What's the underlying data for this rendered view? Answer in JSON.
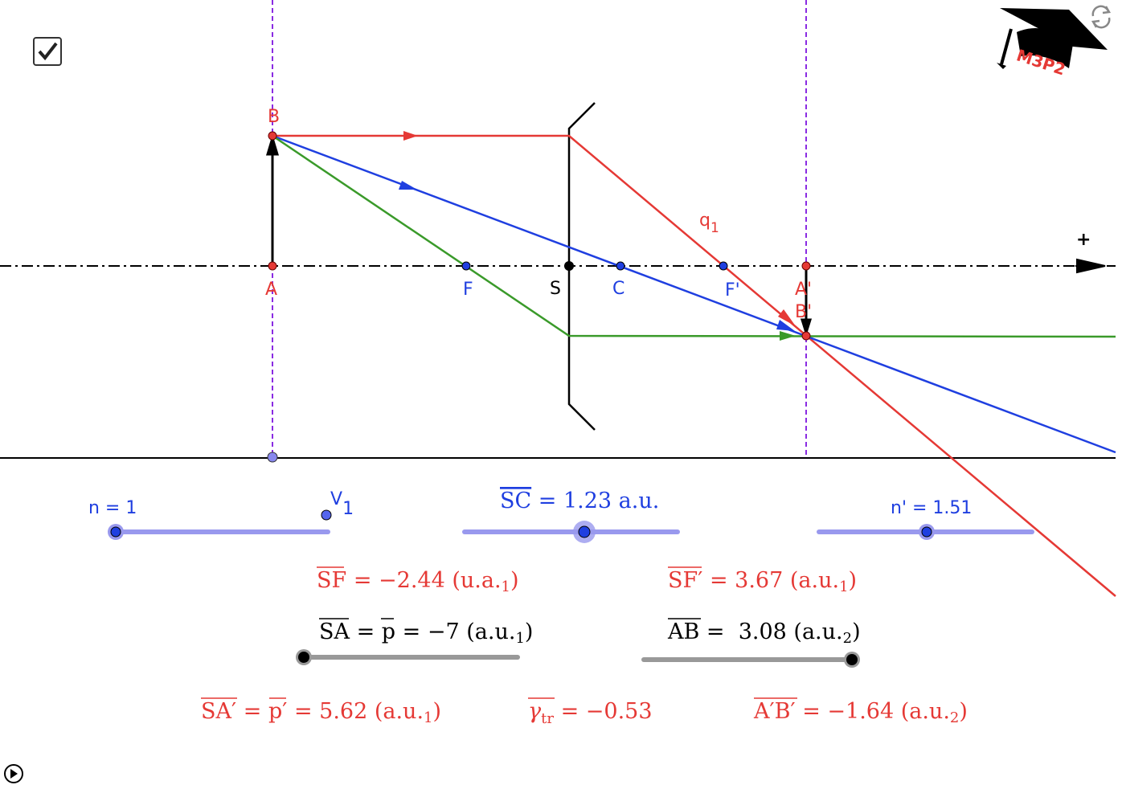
{
  "checkbox": {
    "checked": true
  },
  "logo": {
    "text": "M3P2",
    "icon": "graduation-cap-logo"
  },
  "icons": {
    "reset": "refresh-icon",
    "play": "play-icon"
  },
  "colors": {
    "red": "#e53935",
    "blue": "#1f3fe0",
    "green": "#3a9a2a",
    "purple": "#8a2be2",
    "slider_blue": "#9999ee",
    "slider_gray": "#999999"
  },
  "points": {
    "A": "A",
    "B": "B",
    "F": "F",
    "S": "S",
    "C": "C",
    "F_prime": "F'",
    "A_prime": "A'",
    "B_prime": "B'",
    "q1": "q",
    "q1_sub": "1",
    "plus": "+"
  },
  "sliders": {
    "n": {
      "label": "n = 1",
      "value": 1
    },
    "v1": {
      "label": "V",
      "sub": "1"
    },
    "sc": {
      "label": "SC",
      "text": " = 1.23 a.u.",
      "value": 1.23
    },
    "n_prime": {
      "label": "n' = 1.51",
      "value": 1.51
    },
    "sa": {
      "label": "SA",
      "mid": " = ",
      "p": "p",
      "text": " = −7 (a.u.",
      "sub": "1",
      "close": ")",
      "value": -7
    },
    "ab": {
      "label": "AB",
      "text": " =  3.08 (a.u.",
      "sub": "2",
      "close": ")",
      "value": 3.08
    }
  },
  "results": {
    "sf": {
      "label": "SF",
      "text": " = −2.44 (u.a.",
      "sub": "1",
      "close": ")"
    },
    "sf_prime": {
      "label": "SF′",
      "text": " = 3.67 (a.u.",
      "sub": "1",
      "close": ")"
    },
    "sa_prime": {
      "label": "SA′",
      "mid": " = ",
      "p": "p′",
      "text": " = 5.62 (a.u.",
      "sub": "1",
      "close": ")"
    },
    "gamma": {
      "label": "γ",
      "sub": "tr",
      "text": " = −0.53"
    },
    "ab_prime": {
      "label": "A′B′",
      "text": " = −1.64 (a.u.",
      "sub": "2",
      "close": ")"
    }
  }
}
